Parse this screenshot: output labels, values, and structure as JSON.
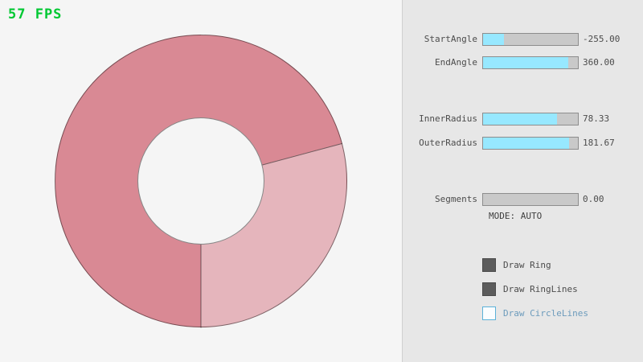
{
  "fps_label": "57 FPS",
  "ring": {
    "start_angle": "-255.00",
    "end_angle": "360.00",
    "inner_radius": "78.33",
    "outer_radius": "181.67",
    "segments": "0.00",
    "mode": "AUTO",
    "color_overlap": "#D98994",
    "color_single": "#E5B5BC",
    "outline_color": "rgba(0,0,0,0.5)"
  },
  "panel": {
    "sliders": [
      {
        "label": "StartAngle",
        "value": "-255.00",
        "fill_pct": 21.7
      },
      {
        "label": "EndAngle",
        "value": "360.00",
        "fill_pct": 90
      },
      {
        "label": "InnerRadius",
        "value": "78.33",
        "fill_pct": 78.3
      },
      {
        "label": "OuterRadius",
        "value": "181.67",
        "fill_pct": 90.8
      },
      {
        "label": "Segments",
        "value": "0.00",
        "fill_pct": 0
      }
    ],
    "mode_text": "MODE: AUTO",
    "checkboxes": [
      {
        "label": "Draw Ring",
        "checked": true
      },
      {
        "label": "Draw RingLines",
        "checked": true
      },
      {
        "label": "Draw CircleLines",
        "checked": false
      }
    ]
  },
  "colors": {
    "fps_green": "#00C832",
    "slider_fill": "#97E8FF",
    "slider_track": "#C9C9C9",
    "panel_bg": "#E7E7E7",
    "canvas_bg": "#F5F5F5",
    "checkbox_checked": "#5C5C5C",
    "checkbox_unchecked_border": "#5BB2D9",
    "unchecked_label_blue": "#6C9BBC"
  }
}
